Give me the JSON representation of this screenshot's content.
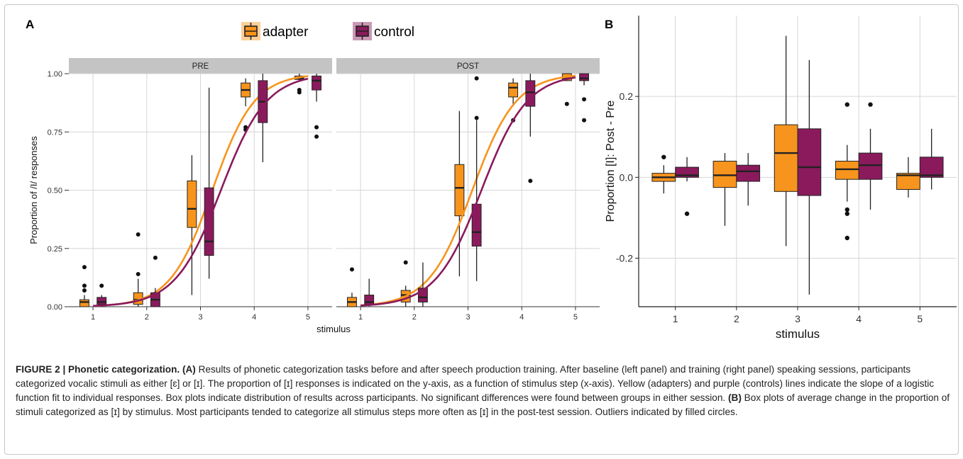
{
  "panel_a_label": "A",
  "panel_b_label": "B",
  "legend": [
    {
      "label": "adapter",
      "color": "#f7941d",
      "fill": "#f7941d"
    },
    {
      "label": "control",
      "color": "#8a1a5c",
      "fill": "#8a1a5c"
    }
  ],
  "colors": {
    "adapter": "#f7941d",
    "control": "#8a1a5c",
    "strip": "#c4c4c4",
    "grid": "#d6d6d6",
    "ink": "#222222"
  },
  "caption": {
    "fig": "FIGURE 2 | Phonetic categorization.",
    "a_tag": "(A)",
    "a_text": "Results of phonetic categorization tasks before and after speech production training. After baseline (left panel) and training (right panel) speaking sessions, participants categorized vocalic stimuli as either [ɛ] or [ɪ]. The proportion of [ɪ] responses is indicated on the y-axis, as a function of stimulus step (x-axis). Yellow (adapters) and purple (controls) lines indicate the slope of a logistic function fit to individual responses. Box plots indicate distribution of results across participants. No significant differences were found between groups in either session.",
    "b_tag": "(B)",
    "b_text": "Box plots of average change in the proportion of stimuli categorized as [ɪ] by stimulus. Most participants tended to categorize all stimulus steps more often as [ɪ] in the post-test session. Outliers indicated by filled circles."
  },
  "chart_data": [
    {
      "type": "boxplot",
      "panel": "A",
      "facets": [
        "PRE",
        "POST"
      ],
      "xlabel": "stimulus",
      "ylabel": "Proportion of /I/ responses",
      "x_ticks": [
        1,
        2,
        3,
        4,
        5
      ],
      "y_ticks": [
        0.0,
        0.25,
        0.5,
        0.75,
        1.0
      ],
      "y_tick_labels": [
        "0.00",
        "0.25",
        "0.50",
        "0.75",
        "1.00"
      ],
      "xlim": [
        0.55,
        5.45
      ],
      "ylim": [
        0.0,
        1.0
      ],
      "grid": true,
      "legend_position": "top",
      "series": [
        {
          "name": "adapter",
          "curves": {
            "PRE": {
              "midpoint": 3.22,
              "slope": 2.55
            },
            "POST": {
              "midpoint": 3.08,
              "slope": 2.45
            }
          },
          "boxes": {
            "PRE": [
              {
                "x": 1,
                "min": 0.0,
                "q1": 0.0,
                "median": 0.02,
                "q3": 0.03,
                "max": 0.05,
                "outliers": [
                  0.07,
                  0.09,
                  0.17
                ]
              },
              {
                "x": 2,
                "min": 0.0,
                "q1": 0.01,
                "median": 0.03,
                "q3": 0.06,
                "max": 0.12,
                "outliers": [
                  0.14,
                  0.31
                ]
              },
              {
                "x": 3,
                "min": 0.05,
                "q1": 0.34,
                "median": 0.42,
                "q3": 0.54,
                "max": 0.65,
                "outliers": []
              },
              {
                "x": 4,
                "min": 0.86,
                "q1": 0.9,
                "median": 0.93,
                "q3": 0.96,
                "max": 0.98,
                "outliers": [
                  0.76,
                  0.77
                ]
              },
              {
                "x": 5,
                "min": 0.97,
                "q1": 0.975,
                "median": 0.98,
                "q3": 0.99,
                "max": 1.0,
                "outliers": [
                  0.92,
                  0.93
                ]
              }
            ],
            "POST": [
              {
                "x": 1,
                "min": 0.0,
                "q1": 0.0,
                "median": 0.02,
                "q3": 0.04,
                "max": 0.06,
                "outliers": [
                  0.16
                ]
              },
              {
                "x": 2,
                "min": 0.0,
                "q1": 0.02,
                "median": 0.05,
                "q3": 0.07,
                "max": 0.09,
                "outliers": [
                  0.19
                ]
              },
              {
                "x": 3,
                "min": 0.13,
                "q1": 0.39,
                "median": 0.51,
                "q3": 0.61,
                "max": 0.84,
                "outliers": []
              },
              {
                "x": 4,
                "min": 0.87,
                "q1": 0.9,
                "median": 0.94,
                "q3": 0.96,
                "max": 0.98,
                "outliers": [
                  0.8
                ]
              },
              {
                "x": 5,
                "min": 0.97,
                "q1": 0.97,
                "median": 0.98,
                "q3": 1.0,
                "max": 1.0,
                "outliers": [
                  0.87
                ]
              }
            ]
          }
        },
        {
          "name": "control",
          "curves": {
            "PRE": {
              "midpoint": 3.38,
              "slope": 2.35
            },
            "POST": {
              "midpoint": 3.25,
              "slope": 2.35
            }
          },
          "boxes": {
            "PRE": [
              {
                "x": 1,
                "min": 0.0,
                "q1": 0.01,
                "median": 0.02,
                "q3": 0.04,
                "max": 0.05,
                "outliers": [
                  0.09
                ]
              },
              {
                "x": 2,
                "min": 0.0,
                "q1": 0.0,
                "median": 0.03,
                "q3": 0.06,
                "max": 0.08,
                "outliers": [
                  0.21
                ]
              },
              {
                "x": 3,
                "min": 0.12,
                "q1": 0.22,
                "median": 0.28,
                "q3": 0.51,
                "max": 0.94,
                "outliers": []
              },
              {
                "x": 4,
                "min": 0.62,
                "q1": 0.79,
                "median": 0.88,
                "q3": 0.97,
                "max": 1.0,
                "outliers": []
              },
              {
                "x": 5,
                "min": 0.88,
                "q1": 0.93,
                "median": 0.97,
                "q3": 0.99,
                "max": 1.0,
                "outliers": [
                  0.73,
                  0.77
                ]
              }
            ],
            "POST": [
              {
                "x": 1,
                "min": 0.0,
                "q1": 0.01,
                "median": 0.02,
                "q3": 0.05,
                "max": 0.12,
                "outliers": []
              },
              {
                "x": 2,
                "min": 0.0,
                "q1": 0.02,
                "median": 0.04,
                "q3": 0.08,
                "max": 0.19,
                "outliers": []
              },
              {
                "x": 3,
                "min": 0.11,
                "q1": 0.26,
                "median": 0.32,
                "q3": 0.44,
                "max": 0.8,
                "outliers": [
                  0.81,
                  0.98
                ]
              },
              {
                "x": 4,
                "min": 0.73,
                "q1": 0.86,
                "median": 0.92,
                "q3": 0.97,
                "max": 1.0,
                "outliers": [
                  0.54
                ]
              },
              {
                "x": 5,
                "min": 0.95,
                "q1": 0.97,
                "median": 0.98,
                "q3": 1.0,
                "max": 1.0,
                "outliers": [
                  0.8,
                  0.89
                ]
              }
            ]
          }
        }
      ]
    },
    {
      "type": "boxplot",
      "panel": "B",
      "xlabel": "stimulus",
      "ylabel": "Proportion [I]: Post - Pre",
      "x_ticks": [
        1,
        2,
        3,
        4,
        5
      ],
      "y_ticks": [
        -0.2,
        0.0,
        0.2
      ],
      "y_tick_labels": [
        "-0.2",
        "0.0",
        "0.2"
      ],
      "xlim": [
        0.4,
        5.6
      ],
      "ylim": [
        -0.32,
        0.4
      ],
      "grid": true,
      "series": [
        {
          "name": "adapter",
          "boxes": [
            {
              "x": 1,
              "min": -0.04,
              "q1": -0.01,
              "median": 0.0,
              "q3": 0.01,
              "max": 0.03,
              "outliers": [
                0.05
              ]
            },
            {
              "x": 2,
              "min": -0.12,
              "q1": -0.025,
              "median": 0.005,
              "q3": 0.04,
              "max": 0.06,
              "outliers": []
            },
            {
              "x": 3,
              "min": -0.17,
              "q1": -0.035,
              "median": 0.06,
              "q3": 0.13,
              "max": 0.35,
              "outliers": []
            },
            {
              "x": 4,
              "min": -0.06,
              "q1": -0.005,
              "median": 0.02,
              "q3": 0.04,
              "max": 0.08,
              "outliers": [
                -0.08,
                -0.09,
                -0.15,
                0.18
              ]
            },
            {
              "x": 5,
              "min": -0.05,
              "q1": -0.03,
              "median": 0.005,
              "q3": 0.01,
              "max": 0.05,
              "outliers": []
            }
          ]
        },
        {
          "name": "control",
          "boxes": [
            {
              "x": 1,
              "min": -0.01,
              "q1": 0.0,
              "median": 0.005,
              "q3": 0.025,
              "max": 0.05,
              "outliers": [
                -0.09
              ]
            },
            {
              "x": 2,
              "min": -0.07,
              "q1": -0.01,
              "median": 0.015,
              "q3": 0.03,
              "max": 0.06,
              "outliers": []
            },
            {
              "x": 3,
              "min": -0.29,
              "q1": -0.045,
              "median": 0.025,
              "q3": 0.12,
              "max": 0.29,
              "outliers": []
            },
            {
              "x": 4,
              "min": -0.08,
              "q1": -0.005,
              "median": 0.03,
              "q3": 0.06,
              "max": 0.12,
              "outliers": [
                0.18
              ]
            },
            {
              "x": 5,
              "min": -0.03,
              "q1": 0.0,
              "median": 0.005,
              "q3": 0.05,
              "max": 0.12,
              "outliers": []
            }
          ]
        }
      ]
    }
  ]
}
